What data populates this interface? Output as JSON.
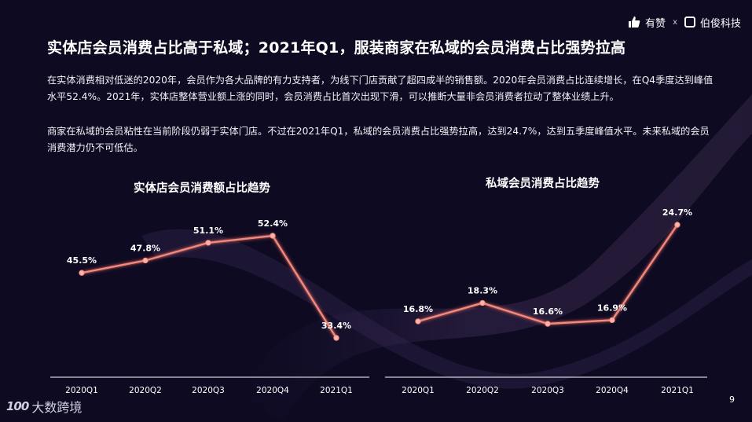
{
  "brand": {
    "youzan_label": "有赞",
    "separator": "x",
    "partner_label": "伯俊科技",
    "footer_label": "大数跨境",
    "footer_mark": "100"
  },
  "page": {
    "title": "实体店会员消费占比高于私域；2021年Q1，服装商家在私域的会员消费占比强势拉高",
    "paragraph1": "在实体消费相对低迷的2020年，会员作为各大品牌的有力支持者，为线下门店贡献了超四成半的销售额。2020年会员消费占比连续增长，在Q4季度达到峰值水平52.4%。2021年，实体店整体营业额上涨的同时，会员消费占比首次出现下滑，可以推断大量非会员消费者拉动了整体业绩上升。",
    "paragraph2": "商家在私域的会员粘性在当前阶段仍弱于实体门店。不过在2021年Q1，私域的会员消费占比强势拉高，达到24.7%，达到五季度峰值水平。未来私域的会员消费潜力仍不可低估。",
    "page_number": "9"
  },
  "colors": {
    "background": "#0d0a22",
    "line": "#f08a7e",
    "glow": "#ff6f61",
    "axis": "#ffffff"
  },
  "chart_data": [
    {
      "type": "line",
      "title": "实体店会员消费额占比趋势",
      "categories": [
        "2020Q1",
        "2020Q2",
        "2020Q3",
        "2020Q4",
        "2021Q1"
      ],
      "values": [
        45.5,
        47.8,
        51.1,
        52.4,
        33.4
      ],
      "data_labels": [
        "45.5%",
        "47.8%",
        "51.1%",
        "52.4%",
        "33.4%"
      ],
      "ylim": [
        30,
        56
      ],
      "grid": false,
      "legend": "none"
    },
    {
      "type": "line",
      "title": "私域会员消费占比趋势",
      "categories": [
        "2020Q1",
        "2020Q2",
        "2020Q3",
        "2020Q4",
        "2021Q1"
      ],
      "values": [
        16.8,
        18.3,
        16.6,
        16.9,
        24.7
      ],
      "data_labels": [
        "16.8%",
        "18.3%",
        "16.6%",
        "16.9%",
        "24.7%"
      ],
      "ylim": [
        10,
        26
      ],
      "grid": false,
      "legend": "none"
    }
  ]
}
